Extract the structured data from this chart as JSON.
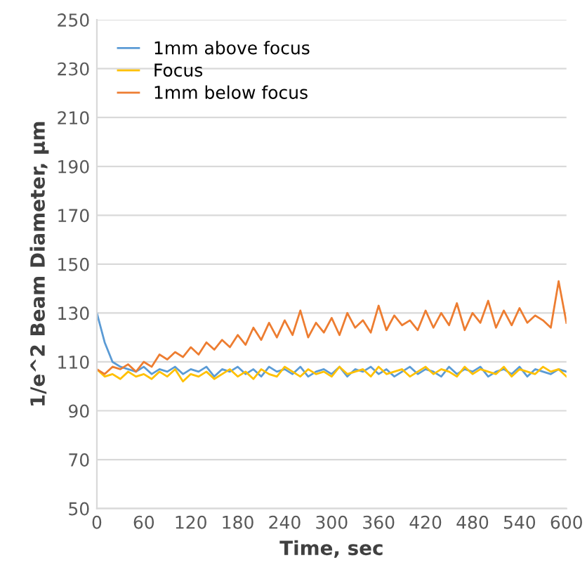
{
  "chart_data": {
    "type": "line",
    "xlabel": "Time, sec",
    "ylabel": "1/e^2 Beam Diameter, µm",
    "x": [
      0,
      10,
      20,
      30,
      40,
      50,
      60,
      70,
      80,
      90,
      100,
      110,
      120,
      130,
      140,
      150,
      160,
      170,
      180,
      190,
      200,
      210,
      220,
      230,
      240,
      250,
      260,
      270,
      280,
      290,
      300,
      310,
      320,
      330,
      340,
      350,
      360,
      370,
      380,
      390,
      400,
      410,
      420,
      430,
      440,
      450,
      460,
      470,
      480,
      490,
      500,
      510,
      520,
      530,
      540,
      550,
      560,
      570,
      580,
      590,
      600
    ],
    "series": [
      {
        "name": "1mm above focus",
        "color": "#5b9bd5",
        "values": [
          130,
          118,
          110,
          108,
          107,
          106,
          108,
          105,
          107,
          106,
          108,
          105,
          107,
          106,
          108,
          104,
          107,
          106,
          108,
          105,
          107,
          104,
          108,
          106,
          107,
          105,
          108,
          104,
          106,
          107,
          105,
          108,
          104,
          107,
          106,
          108,
          105,
          107,
          104,
          106,
          108,
          105,
          107,
          106,
          104,
          108,
          105,
          107,
          106,
          108,
          104,
          106,
          107,
          105,
          108,
          104,
          107,
          106,
          105,
          107,
          106
        ]
      },
      {
        "name": "Focus",
        "color": "#ffc000",
        "values": [
          107,
          104,
          105,
          103,
          106,
          104,
          105,
          103,
          106,
          104,
          107,
          102,
          105,
          104,
          106,
          103,
          105,
          107,
          104,
          106,
          103,
          107,
          105,
          104,
          108,
          106,
          104,
          107,
          105,
          106,
          104,
          108,
          105,
          106,
          107,
          104,
          108,
          105,
          106,
          107,
          104,
          106,
          108,
          105,
          107,
          106,
          104,
          108,
          105,
          107,
          106,
          105,
          108,
          104,
          107,
          106,
          105,
          108,
          106,
          107,
          104
        ]
      },
      {
        "name": "1mm below focus",
        "color": "#ed7d31",
        "values": [
          107,
          105,
          108,
          107,
          109,
          106,
          110,
          108,
          113,
          111,
          114,
          112,
          116,
          113,
          118,
          115,
          119,
          116,
          121,
          117,
          124,
          119,
          126,
          120,
          127,
          121,
          131,
          120,
          126,
          122,
          128,
          121,
          130,
          124,
          127,
          122,
          133,
          123,
          129,
          125,
          127,
          123,
          131,
          124,
          130,
          125,
          134,
          123,
          130,
          126,
          135,
          124,
          131,
          125,
          132,
          126,
          129,
          127,
          124,
          143,
          126
        ]
      }
    ],
    "xlim": [
      0,
      600
    ],
    "xticks": [
      0,
      60,
      120,
      180,
      240,
      300,
      360,
      420,
      480,
      540,
      600
    ],
    "ylim": [
      50,
      250
    ],
    "yticks": [
      50,
      70,
      90,
      110,
      130,
      150,
      170,
      190,
      210,
      230,
      250
    ],
    "grid": "y",
    "legend": "top left"
  }
}
